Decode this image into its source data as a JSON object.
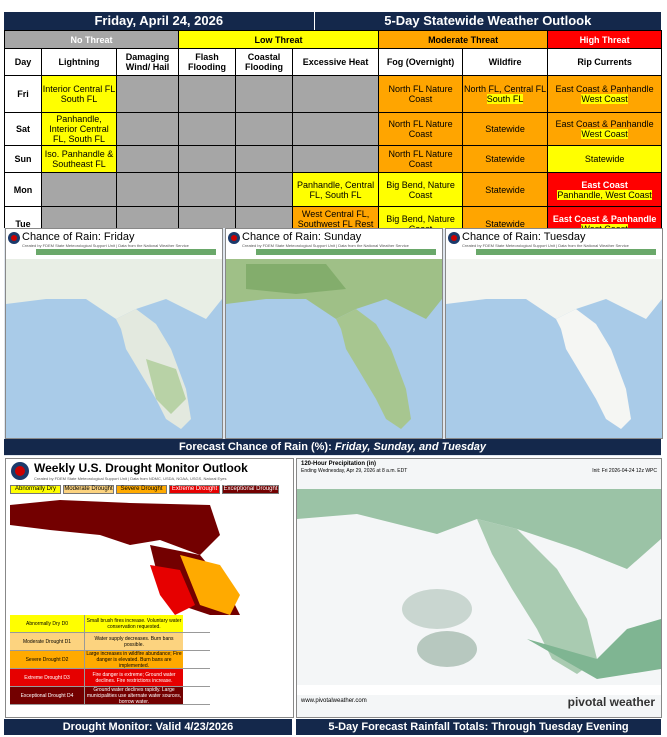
{
  "header": {
    "date": "Friday, April 24, 2026",
    "title": "5-Day Statewide Weather Outlook"
  },
  "legend": {
    "none": "No Threat",
    "low": "Low Threat",
    "moderate": "Moderate Threat",
    "high": "High Threat"
  },
  "columns": [
    "Day",
    "Lightning",
    "Damaging Wind/ Hail",
    "Flash Flooding",
    "Coastal Flooding",
    "Excessive Heat",
    "Fog (Overnight)",
    "Wildfire",
    "Rip Currents"
  ],
  "rows": [
    {
      "day": "Fri",
      "lightning": "Interior Central FL South FL",
      "heat": "",
      "fog": "North FL Nature Coast",
      "wildfire_a": "North FL, Central FL",
      "wildfire_b": "South FL",
      "rip_a": "East Coast & Panhandle",
      "rip_b": "West Coast"
    },
    {
      "day": "Sat",
      "lightning": "Panhandle, Interior Central FL, South FL",
      "heat": "",
      "fog": "North FL Nature Coast",
      "wildfire_a": "Statewide",
      "wildfire_b": "",
      "rip_a": "East Coast & Panhandle",
      "rip_b": "West Coast"
    },
    {
      "day": "Sun",
      "lightning": "Iso. Panhandle & Southeast FL",
      "heat": "",
      "fog": "North FL Nature Coast",
      "wildfire_a": "Statewide",
      "wildfire_b": "",
      "rip_a": "Statewide",
      "rip_b": ""
    },
    {
      "day": "Mon",
      "lightning": "",
      "heat": "Panhandle, Central FL, South FL",
      "fog": "Big Bend, Nature Coast",
      "wildfire_a": "Statewide",
      "wildfire_b": "",
      "rip_a": "East Coast",
      "rip_b": "Panhandle, West Coast"
    },
    {
      "day": "Tue",
      "lightning": "",
      "heat": "West Central FL, Southwest FL Rest of State",
      "fog": "Big Bend, Nature Coast",
      "wildfire_a": "Statewide",
      "wildfire_b": "",
      "rip_a": "East Coast & Panhandle",
      "rip_b": "West Coast"
    }
  ],
  "rain_maps": [
    {
      "title": "Chance of Rain: Friday",
      "subtitle": "Created by FDEM State Meteorological Support Unit | Data from the National Weather Service"
    },
    {
      "title": "Chance of Rain: Sunday",
      "subtitle": "Created by FDEM State Meteorological Support Unit | Data from the National Weather Service"
    },
    {
      "title": "Chance of Rain: Tuesday",
      "subtitle": "Created by FDEM State Meteorological Support Unit | Data from the National Weather Service"
    }
  ],
  "rain_caption": {
    "prefix": "Forecast Chance of Rain (%):",
    "days": "Friday, Sunday, and Tuesday"
  },
  "drought": {
    "title": "Weekly U.S. Drought Monitor Outlook",
    "subtitle": "Created by FDEM State Meteorological Support Unit | Data from NDMC, USDA, NOAA, USGS, Natural Eyes",
    "categories": [
      "Abnormally Dry",
      "Moderate Drought",
      "Severe Drought",
      "Extreme Drought",
      "Exceptional Drought"
    ],
    "colors": [
      "#ffff00",
      "#fcd37f",
      "#ffaa00",
      "#e60000",
      "#730000"
    ],
    "legend": [
      {
        "name": "Abnormally Dry",
        "code": "D0",
        "desc": "Small brush fires increase. Voluntary water conservation requested."
      },
      {
        "name": "Moderate Drought",
        "code": "D1",
        "desc": "Water supply decreases. Burn bans possible."
      },
      {
        "name": "Severe Drought",
        "code": "D2",
        "desc": "Large increases in wildfire abundance; Fire danger is elevated. Burn bans are implemented."
      },
      {
        "name": "Extreme Drought",
        "code": "D3",
        "desc": "Fire danger is extreme; Ground water declines. Fire restrictions increase."
      },
      {
        "name": "Exceptional Drought",
        "code": "D4",
        "desc": "Ground water declines rapidly. Large municipalities use alternate water sources, borrow water."
      }
    ],
    "caption": "Drought Monitor: Valid 4/23/2026"
  },
  "rainfall": {
    "title": "120-Hour Precipitation (in)",
    "ending": "Ending Wednesday, Apr 29, 2026 at 8 a.m. EDT",
    "init": "Init: Fri 2026-04-24 12z WPC",
    "site": "www.pivotalweather.com",
    "brand": "pivotal weather",
    "caption": "5-Day Forecast Rainfall Totals: Through Tuesday Evening"
  }
}
